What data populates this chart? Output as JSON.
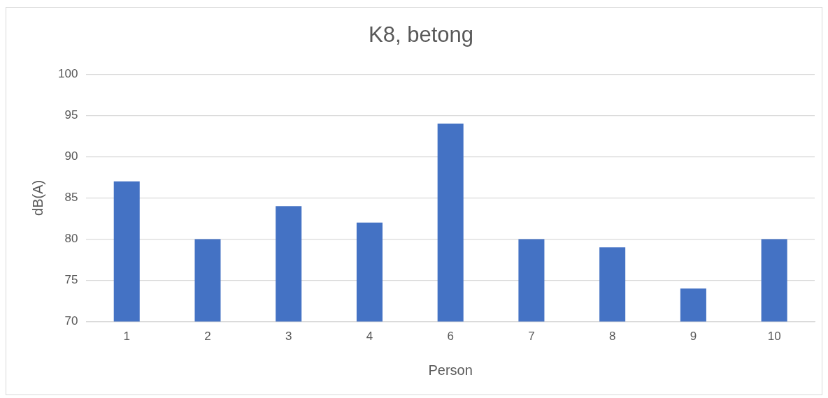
{
  "chart_data": {
    "type": "bar",
    "title": "K8, betong",
    "xlabel": "Person",
    "ylabel": "dB(A)",
    "categories": [
      "1",
      "2",
      "3",
      "4",
      "6",
      "7",
      "8",
      "9",
      "10"
    ],
    "values": [
      87,
      80,
      84,
      82,
      94,
      80,
      79,
      74,
      80
    ],
    "color": "#4472c4",
    "ylim": [
      70,
      100
    ],
    "yticks": [
      70,
      75,
      80,
      85,
      90,
      95,
      100
    ],
    "grid": "y"
  }
}
